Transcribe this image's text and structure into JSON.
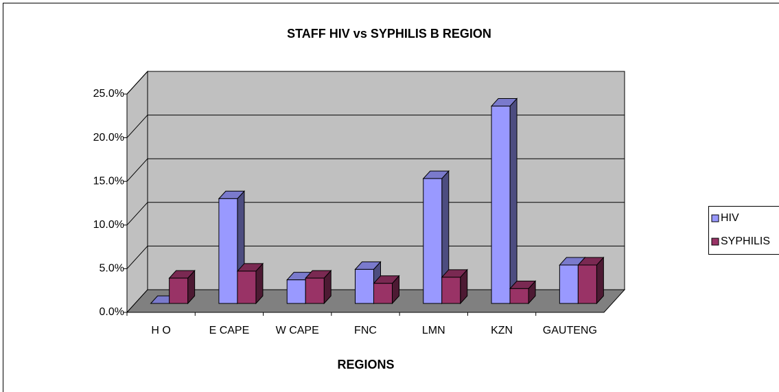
{
  "chart_data": {
    "type": "bar3d",
    "title": "STAFF HIV vs SYPHILIS B REGION",
    "x_label": "REGIONS",
    "categories": [
      "H O",
      "E CAPE",
      "W CAPE",
      "FNC",
      "LMN",
      "KZN",
      "GAUTENG"
    ],
    "series": [
      {
        "name": "HIV",
        "color": "#9999ff",
        "values": [
          0,
          12.0,
          2.7,
          3.9,
          14.3,
          22.6,
          4.4
        ]
      },
      {
        "name": "SYPHILIS",
        "color": "#993366",
        "values": [
          2.9,
          3.7,
          2.9,
          2.3,
          3.0,
          1.7,
          4.4
        ]
      }
    ],
    "ylim": [
      0,
      25
    ],
    "yticks": [
      {
        "value": 0,
        "label": "0.0%"
      },
      {
        "value": 5,
        "label": "5.0%"
      },
      {
        "value": 10,
        "label": "10.0%"
      },
      {
        "value": 15,
        "label": "15.0%"
      },
      {
        "value": 20,
        "label": "20.0%"
      },
      {
        "value": 25,
        "label": "25.0%"
      }
    ],
    "grid": true,
    "legend": "right"
  }
}
